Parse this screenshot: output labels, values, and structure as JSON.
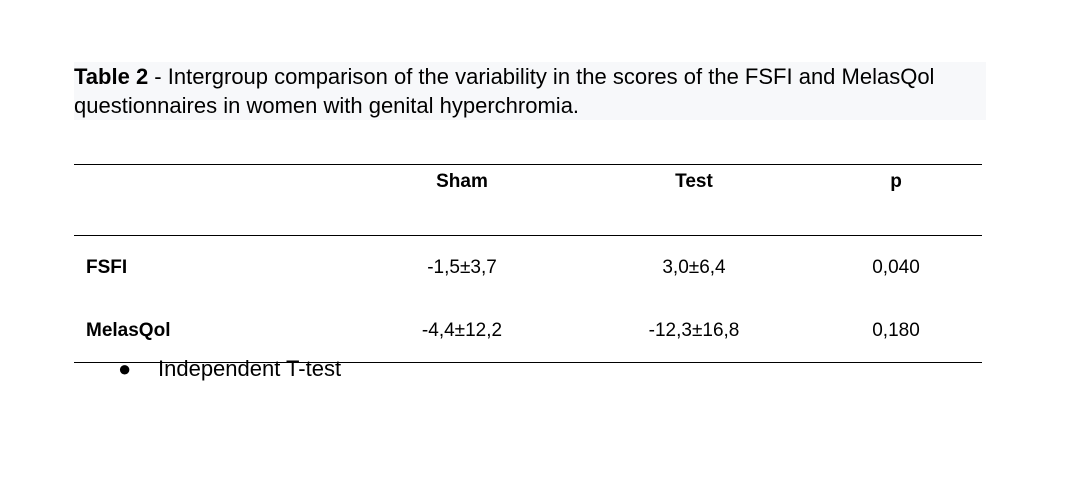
{
  "caption": {
    "label": "Table 2",
    "text": " - Intergroup comparison of the variability in the scores of the FSFI and MelasQol questionnaires in women with genital hyperchromia."
  },
  "table": {
    "header": [
      "",
      "Sham",
      "Test",
      "p"
    ],
    "rows": [
      [
        "FSFI",
        "-1,5±3,7",
        "3,0±6,4",
        "0,040"
      ],
      [
        "MelasQol",
        "-4,4±12,2",
        "-12,3±16,8",
        "0,180"
      ]
    ]
  },
  "note": "Independent T-test"
}
